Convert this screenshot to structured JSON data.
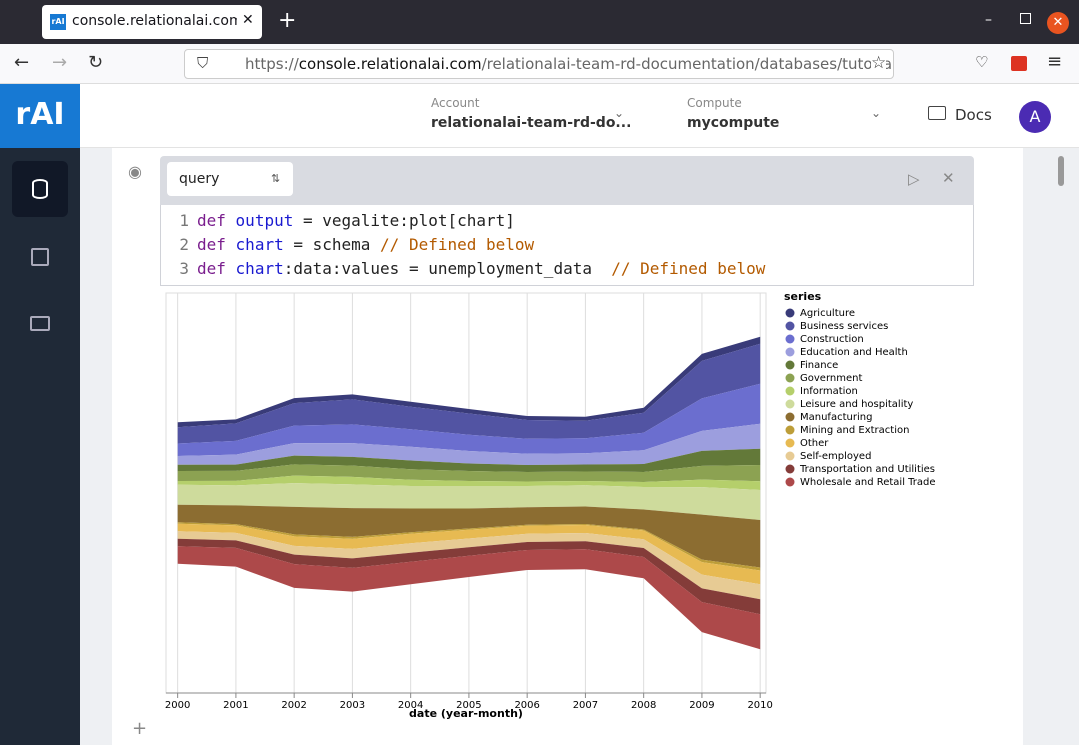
{
  "browser": {
    "tab_title": "console.relationalai.com/",
    "url_scheme": "https://",
    "url_host": "console.relationalai.com",
    "url_path": "/relationalai-team-rd-documentation/databases/tutorial"
  },
  "header": {
    "logo": "rAI",
    "account_label": "Account",
    "account_value": "relationalai-team-rd-do...",
    "compute_label": "Compute",
    "compute_value": "mycompute",
    "docs": "Docs",
    "avatar": "A"
  },
  "cell": {
    "selector": "query",
    "lines": [
      {
        "number": "1",
        "tokens": [
          "def",
          "output",
          " = vegalite:plot[chart]"
        ]
      },
      {
        "number": "2",
        "tokens": [
          "def",
          "chart",
          " = schema ",
          "// Defined below"
        ]
      },
      {
        "number": "3",
        "tokens": [
          "def",
          "chart",
          ":data:values = unemployment_data  ",
          "// Defined below"
        ]
      }
    ]
  },
  "chart_data": {
    "type": "streamgraph",
    "x_label": "date (year-month)",
    "legend_title": "series",
    "legend": "right",
    "grid": true,
    "x": [
      2000,
      2001,
      2002,
      2003,
      2004,
      2005,
      2006,
      2007,
      2008,
      2009,
      2010
    ],
    "xlim": [
      1999.8,
      2010.1
    ],
    "xticks": [
      2000,
      2001,
      2002,
      2003,
      2004,
      2005,
      2006,
      2007,
      2008,
      2009,
      2010
    ],
    "ylim": [
      -8000,
      8000
    ],
    "series": [
      {
        "name": "Agriculture",
        "color": "#393b79",
        "values": [
          200,
          160,
          200,
          200,
          200,
          180,
          160,
          160,
          200,
          280,
          280
        ]
      },
      {
        "name": "Business services",
        "color": "#5254a3",
        "values": [
          650,
          700,
          900,
          1000,
          900,
          850,
          750,
          700,
          800,
          1500,
          1600
        ]
      },
      {
        "name": "Construction",
        "color": "#6b6ecf",
        "values": [
          500,
          550,
          700,
          750,
          700,
          650,
          600,
          600,
          700,
          1300,
          1600
        ]
      },
      {
        "name": "Education and Health",
        "color": "#9c9ede",
        "values": [
          350,
          400,
          500,
          550,
          550,
          500,
          450,
          450,
          550,
          800,
          1000
        ]
      },
      {
        "name": "Finance",
        "color": "#637939",
        "values": [
          250,
          250,
          350,
          350,
          350,
          300,
          280,
          280,
          320,
          600,
          650
        ]
      },
      {
        "name": "Government",
        "color": "#8ca252",
        "values": [
          400,
          400,
          450,
          450,
          420,
          400,
          380,
          380,
          400,
          550,
          650
        ]
      },
      {
        "name": "Information",
        "color": "#b5cf6b",
        "values": [
          150,
          180,
          300,
          300,
          250,
          200,
          180,
          170,
          200,
          300,
          350
        ]
      },
      {
        "name": "Leisure and hospitality",
        "color": "#cedb9c",
        "values": [
          800,
          800,
          950,
          950,
          900,
          900,
          850,
          850,
          900,
          1100,
          1200
        ]
      },
      {
        "name": "Manufacturing",
        "color": "#8c6d31",
        "values": [
          700,
          750,
          1100,
          1150,
          950,
          800,
          700,
          700,
          800,
          1800,
          1900
        ]
      },
      {
        "name": "Mining and Extraction",
        "color": "#bd9e39",
        "values": [
          60,
          50,
          80,
          80,
          60,
          50,
          40,
          40,
          40,
          100,
          120
        ]
      },
      {
        "name": "Other",
        "color": "#e7ba52",
        "values": [
          300,
          300,
          380,
          400,
          380,
          350,
          320,
          320,
          350,
          500,
          550
        ]
      },
      {
        "name": "Self-employed",
        "color": "#e7cb94",
        "values": [
          300,
          300,
          350,
          380,
          380,
          350,
          330,
          330,
          350,
          550,
          600
        ]
      },
      {
        "name": "Transportation and Utilities",
        "color": "#843c39",
        "values": [
          300,
          300,
          380,
          380,
          360,
          340,
          320,
          320,
          360,
          550,
          600
        ]
      },
      {
        "name": "Wholesale and Retail Trade",
        "color": "#ad494a",
        "values": [
          700,
          750,
          950,
          950,
          900,
          850,
          800,
          800,
          850,
          1200,
          1400
        ]
      }
    ]
  }
}
